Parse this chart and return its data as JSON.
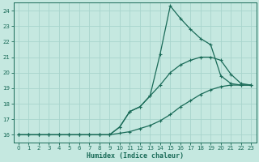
{
  "xlabel": "Humidex (Indice chaleur)",
  "bg_color": "#c5e8e0",
  "grid_color": "#a8d4cc",
  "line_color": "#1a6b58",
  "xlim": [
    -0.5,
    23.5
  ],
  "ylim": [
    15.5,
    24.5
  ],
  "xticks": [
    0,
    1,
    2,
    3,
    4,
    5,
    6,
    7,
    8,
    9,
    10,
    11,
    12,
    13,
    14,
    15,
    16,
    17,
    18,
    19,
    20,
    21,
    22,
    23
  ],
  "yticks": [
    16,
    17,
    18,
    19,
    20,
    21,
    22,
    23,
    24
  ],
  "line1_x": [
    0,
    1,
    2,
    3,
    4,
    5,
    6,
    7,
    8,
    9,
    10,
    11,
    12,
    13,
    14,
    15,
    16,
    17,
    18,
    19,
    20,
    21,
    22,
    23
  ],
  "line1_y": [
    16.0,
    16.0,
    16.0,
    16.0,
    16.0,
    16.0,
    16.0,
    16.0,
    16.0,
    16.0,
    16.1,
    16.2,
    16.4,
    16.6,
    16.9,
    17.3,
    17.8,
    18.2,
    18.6,
    18.9,
    19.1,
    19.2,
    19.2,
    19.2
  ],
  "line2_x": [
    0,
    1,
    2,
    3,
    4,
    5,
    6,
    7,
    8,
    9,
    10,
    11,
    12,
    13,
    14,
    15,
    16,
    17,
    18,
    19,
    20,
    21,
    22,
    23
  ],
  "line2_y": [
    16.0,
    16.0,
    16.0,
    16.0,
    16.0,
    16.0,
    16.0,
    16.0,
    16.0,
    16.0,
    16.5,
    17.5,
    17.8,
    18.5,
    21.2,
    24.3,
    23.5,
    22.8,
    22.2,
    21.8,
    19.8,
    19.3,
    19.2,
    19.2
  ],
  "line3_x": [
    0,
    1,
    2,
    3,
    4,
    5,
    6,
    7,
    8,
    9,
    10,
    11,
    12,
    13,
    14,
    15,
    16,
    17,
    18,
    19,
    20,
    21,
    22,
    23
  ],
  "line3_y": [
    16.0,
    16.0,
    16.0,
    16.0,
    16.0,
    16.0,
    16.0,
    16.0,
    16.0,
    16.0,
    16.5,
    17.5,
    17.8,
    18.5,
    19.2,
    20.0,
    20.5,
    20.8,
    21.0,
    21.0,
    20.8,
    19.9,
    19.3,
    19.2
  ]
}
